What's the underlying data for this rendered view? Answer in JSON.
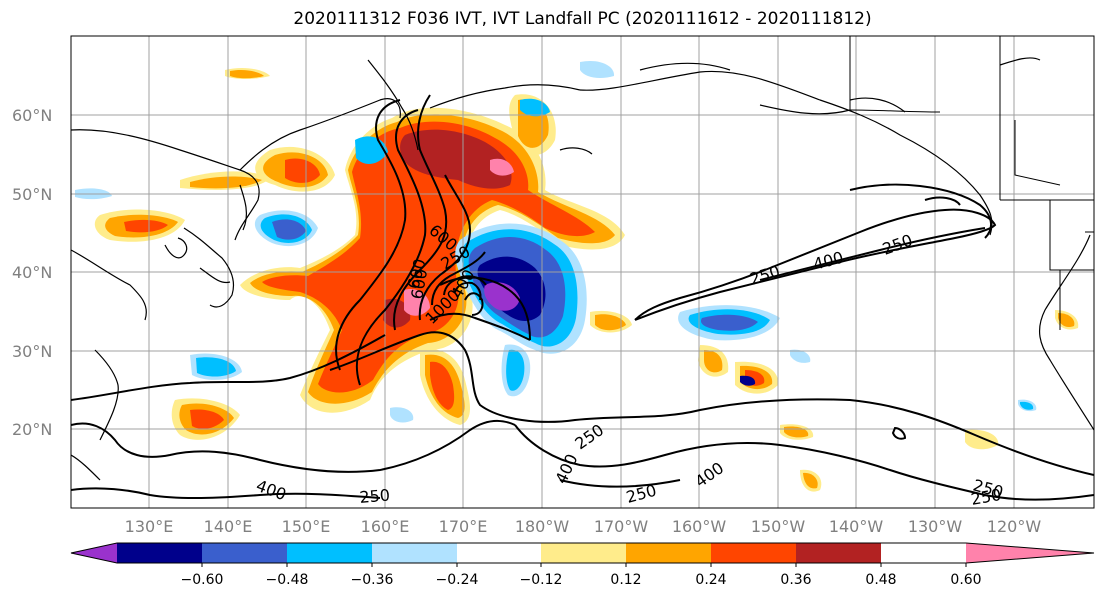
{
  "title": "2020111312 F036 IVT, IVT Landfall PC (2020111612 - 2020111812)",
  "map": {
    "lat_labels": [
      "60°N",
      "50°N",
      "40°N",
      "30°N",
      "20°N"
    ],
    "lon_labels": [
      "130°E",
      "140°E",
      "150°E",
      "160°E",
      "170°E",
      "180°W",
      "170°W",
      "160°W",
      "150°W",
      "140°W",
      "130°W",
      "120°W"
    ],
    "contour_labels": [
      "600",
      "600",
      "400",
      "250",
      "600",
      "1000",
      "250",
      "400",
      "400",
      "250",
      "250",
      "400",
      "250"
    ]
  },
  "colorbar": {
    "ticks": [
      "−0.60",
      "−0.48",
      "−0.36",
      "−0.24",
      "−0.12",
      "0.12",
      "0.24",
      "0.36",
      "0.48",
      "0.60"
    ],
    "colors": [
      "#9a32cd",
      "#00008b",
      "#3a5fcd",
      "#00bfff",
      "#b0e2ff",
      "#ffffff",
      "#ffec8b",
      "#ffa500",
      "#ff4500",
      "#b22222",
      "#ff82ab"
    ]
  }
}
